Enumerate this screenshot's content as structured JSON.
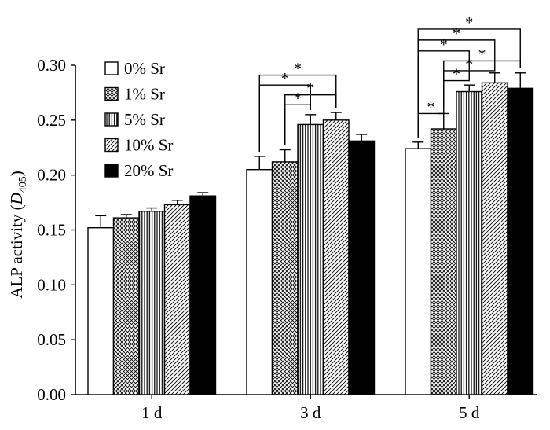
{
  "chart_data": {
    "type": "bar",
    "title": "",
    "xlabel": "",
    "ylabel": "ALP activity",
    "ylabel_paren_left": "(",
    "ylabel_var": "D",
    "ylabel_sub": "405",
    "ylabel_paren_right": ")",
    "ylim": [
      0,
      0.3
    ],
    "yticks": [
      "0.00",
      "0.05",
      "0.10",
      "0.15",
      "0.20",
      "0.25",
      "0.30"
    ],
    "ytick_values": [
      0,
      0.05,
      0.1,
      0.15,
      0.2,
      0.25,
      0.3
    ],
    "categories": [
      "1 d",
      "3 d",
      "5 d"
    ],
    "legend_position": "top-left",
    "series": [
      {
        "name": "0% Sr",
        "pattern": "blank",
        "values": [
          0.152,
          0.205,
          0.224
        ],
        "errors": [
          0.011,
          0.012,
          0.006
        ]
      },
      {
        "name": "1% Sr",
        "pattern": "crosshatch",
        "values": [
          0.161,
          0.212,
          0.242
        ],
        "errors": [
          0.003,
          0.011,
          0.014
        ]
      },
      {
        "name": "5% Sr",
        "pattern": "vertical",
        "values": [
          0.167,
          0.246,
          0.276
        ],
        "errors": [
          0.003,
          0.009,
          0.006
        ]
      },
      {
        "name": "10% Sr",
        "pattern": "diagonal",
        "values": [
          0.173,
          0.25,
          0.284
        ],
        "errors": [
          0.004,
          0.007,
          0.009
        ]
      },
      {
        "name": "20% Sr",
        "pattern": "solid",
        "values": [
          0.181,
          0.231,
          0.279
        ],
        "errors": [
          0.003,
          0.006,
          0.014
        ]
      }
    ],
    "significance": [
      {
        "category": 1,
        "from": 0,
        "to": 3,
        "level": 0.291,
        "label": "*"
      },
      {
        "category": 1,
        "from": 0,
        "to": 2,
        "level": 0.282,
        "label": "*"
      },
      {
        "category": 1,
        "from": 1,
        "to": 3,
        "level": 0.273,
        "label": "*"
      },
      {
        "category": 1,
        "from": 1,
        "to": 2,
        "level": 0.264,
        "label": "*"
      },
      {
        "category": 2,
        "from": 0,
        "to": 4,
        "level": 0.333,
        "label": "*"
      },
      {
        "category": 2,
        "from": 0,
        "to": 3,
        "level": 0.323,
        "label": "*"
      },
      {
        "category": 2,
        "from": 0,
        "to": 2,
        "level": 0.313,
        "label": "*"
      },
      {
        "category": 2,
        "from": 1,
        "to": 4,
        "level": 0.304,
        "label": "*"
      },
      {
        "category": 2,
        "from": 1,
        "to": 3,
        "level": 0.295,
        "label": "*"
      },
      {
        "category": 2,
        "from": 1,
        "to": 2,
        "level": 0.286,
        "label": "*"
      },
      {
        "category": 2,
        "from": 0,
        "to": 1,
        "level": 0.256,
        "label": "*"
      }
    ]
  }
}
